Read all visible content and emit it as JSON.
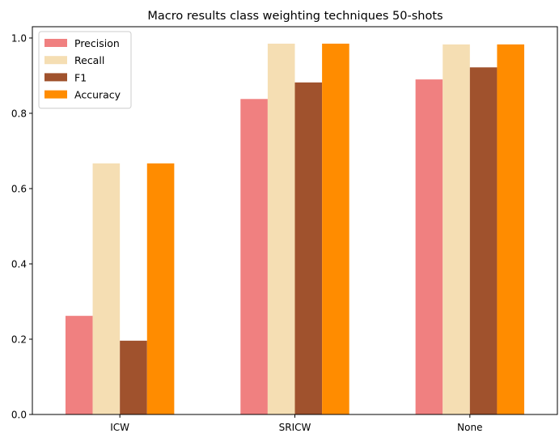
{
  "chart_data": {
    "type": "bar",
    "title": "Macro results class weighting techniques 50-shots",
    "xlabel": "",
    "ylabel": "",
    "categories": [
      "ICW",
      "SRICW",
      "None"
    ],
    "ylim": [
      0,
      1.03
    ],
    "yticks": [
      0.0,
      0.2,
      0.4,
      0.6,
      0.8,
      1.0
    ],
    "ytick_labels": [
      "0.0",
      "0.2",
      "0.4",
      "0.6",
      "0.8",
      "1.0"
    ],
    "grid": false,
    "legend_position": "top-left",
    "series": [
      {
        "name": "Precision",
        "color": "#f08080",
        "values": [
          0.262,
          0.838,
          0.89
        ]
      },
      {
        "name": "Recall",
        "color": "#f5deb3",
        "values": [
          0.667,
          0.985,
          0.983
        ]
      },
      {
        "name": "F1",
        "color": "#a0522d",
        "values": [
          0.196,
          0.882,
          0.922
        ]
      },
      {
        "name": "Accuracy",
        "color": "#ff8c00",
        "values": [
          0.667,
          0.985,
          0.983
        ]
      }
    ]
  }
}
